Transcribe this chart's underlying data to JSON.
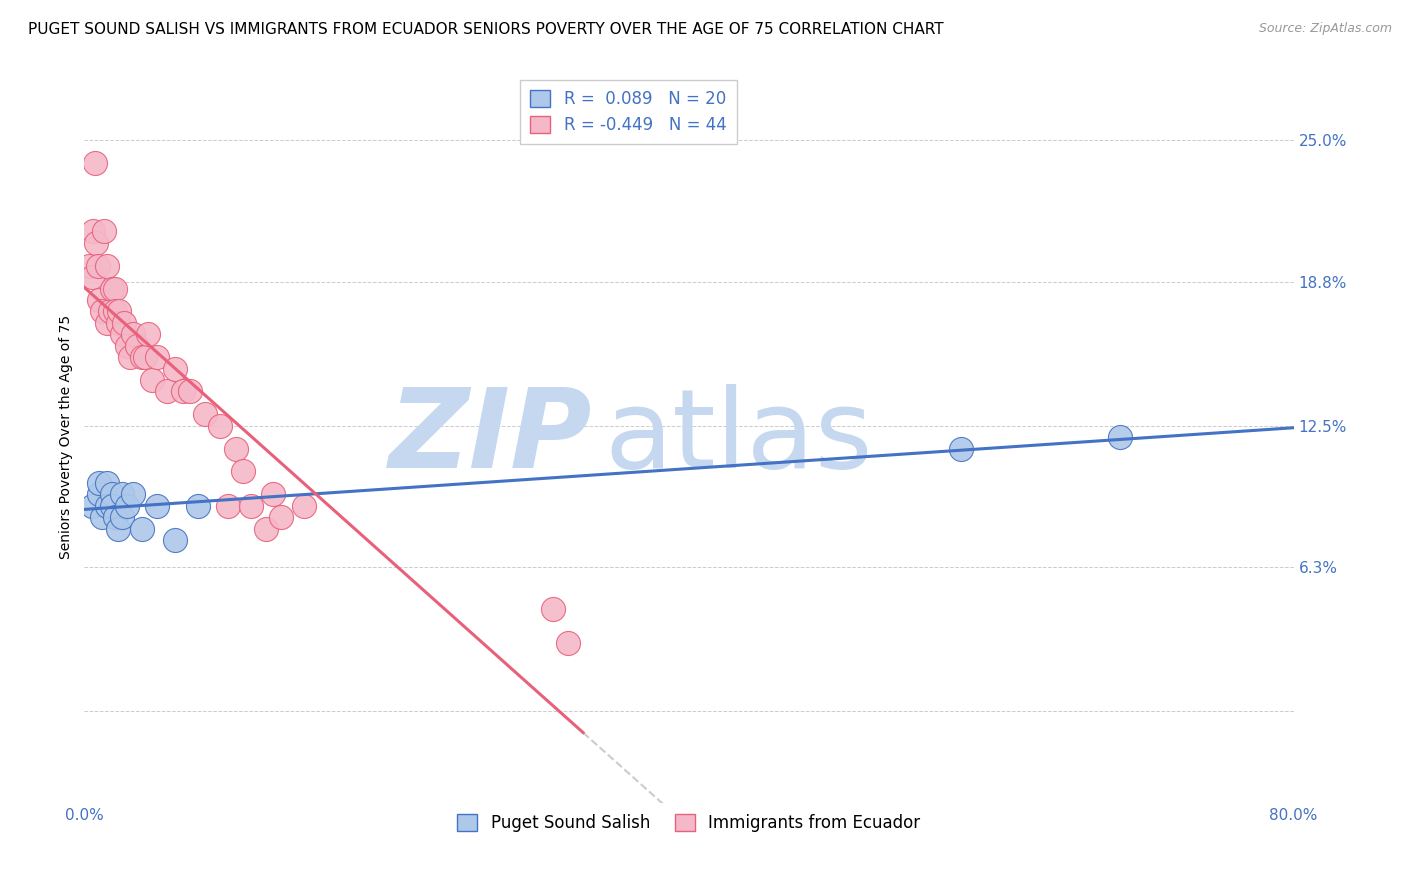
{
  "title": "PUGET SOUND SALISH VS IMMIGRANTS FROM ECUADOR SENIORS POVERTY OVER THE AGE OF 75 CORRELATION CHART",
  "source": "Source: ZipAtlas.com",
  "ylabel": "Seniors Poverty Over the Age of 75",
  "xlim": [
    0.0,
    0.8
  ],
  "ylim": [
    -0.04,
    0.28
  ],
  "xticks": [
    0.0,
    0.1,
    0.2,
    0.3,
    0.4,
    0.5,
    0.6,
    0.7,
    0.8
  ],
  "xticklabels": [
    "0.0%",
    "",
    "",
    "",
    "",
    "",
    "",
    "",
    "80.0%"
  ],
  "ytick_positions": [
    0.0,
    0.063,
    0.125,
    0.188,
    0.25
  ],
  "ytick_labels": [
    "",
    "6.3%",
    "12.5%",
    "18.8%",
    "25.0%"
  ],
  "watermark_zip": "ZIP",
  "watermark_atlas": "atlas",
  "series1_label": "Puget Sound Salish",
  "series2_label": "Immigrants from Ecuador",
  "R1": 0.089,
  "N1": 20,
  "R2": -0.449,
  "N2": 44,
  "color1": "#adc8e8",
  "color2": "#f5b8c8",
  "line_color1": "#4472c4",
  "line_color2": "#e8607a",
  "series1_x": [
    0.005,
    0.01,
    0.01,
    0.012,
    0.015,
    0.015,
    0.018,
    0.018,
    0.02,
    0.022,
    0.025,
    0.025,
    0.028,
    0.032,
    0.038,
    0.048,
    0.06,
    0.075,
    0.58,
    0.685
  ],
  "series1_y": [
    0.09,
    0.095,
    0.1,
    0.085,
    0.1,
    0.09,
    0.095,
    0.09,
    0.085,
    0.08,
    0.085,
    0.095,
    0.09,
    0.095,
    0.08,
    0.09,
    0.075,
    0.09,
    0.115,
    0.12
  ],
  "series2_x": [
    0.003,
    0.005,
    0.006,
    0.007,
    0.008,
    0.009,
    0.01,
    0.012,
    0.013,
    0.015,
    0.015,
    0.017,
    0.018,
    0.02,
    0.02,
    0.022,
    0.023,
    0.025,
    0.026,
    0.028,
    0.03,
    0.032,
    0.035,
    0.038,
    0.04,
    0.042,
    0.045,
    0.048,
    0.055,
    0.06,
    0.065,
    0.07,
    0.08,
    0.09,
    0.095,
    0.1,
    0.105,
    0.11,
    0.12,
    0.125,
    0.13,
    0.145,
    0.31,
    0.32
  ],
  "series2_y": [
    0.195,
    0.19,
    0.21,
    0.24,
    0.205,
    0.195,
    0.18,
    0.175,
    0.21,
    0.17,
    0.195,
    0.175,
    0.185,
    0.185,
    0.175,
    0.17,
    0.175,
    0.165,
    0.17,
    0.16,
    0.155,
    0.165,
    0.16,
    0.155,
    0.155,
    0.165,
    0.145,
    0.155,
    0.14,
    0.15,
    0.14,
    0.14,
    0.13,
    0.125,
    0.09,
    0.115,
    0.105,
    0.09,
    0.08,
    0.095,
    0.085,
    0.09,
    0.045,
    0.03
  ],
  "title_fontsize": 11,
  "axis_label_fontsize": 10,
  "tick_fontsize": 11,
  "legend_fontsize": 12,
  "source_fontsize": 9,
  "background_color": "#ffffff",
  "grid_color": "#cccccc",
  "watermark_color_zip": "#c5d8ef",
  "watermark_color_atlas": "#c5d8ef",
  "watermark_fontsize": 80,
  "marker_size": 300
}
